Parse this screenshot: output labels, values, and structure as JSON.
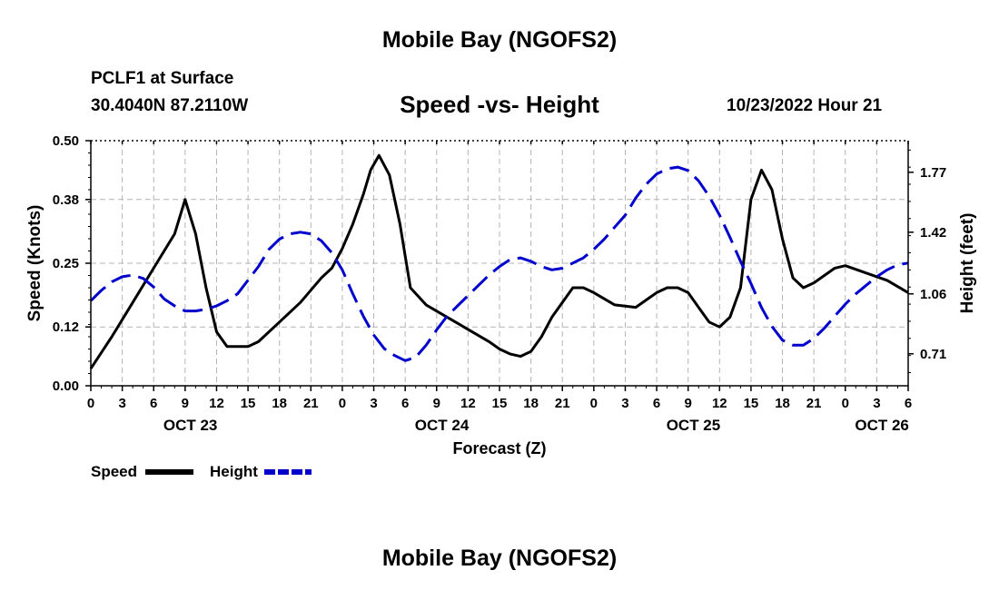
{
  "header": {
    "title": "Mobile Bay (NGOFS2)",
    "station": "PCLF1 at Surface",
    "coords": "30.4040N  87.2110W",
    "subtitle": "Speed -vs- Height",
    "datetime": "10/23/2022 Hour 21",
    "footer_title": "Mobile Bay (NGOFS2)"
  },
  "chart_data": {
    "type": "line",
    "xlabel": "Forecast (Z)",
    "ylabel_left": "Speed (Knots)",
    "ylabel_right": "Height (feet)",
    "x_range_hours": [
      0,
      78
    ],
    "x_ticks": [
      {
        "h": 0,
        "label": "0"
      },
      {
        "h": 3,
        "label": "3"
      },
      {
        "h": 6,
        "label": "6"
      },
      {
        "h": 9,
        "label": "9"
      },
      {
        "h": 12,
        "label": "12"
      },
      {
        "h": 15,
        "label": "15"
      },
      {
        "h": 18,
        "label": "18"
      },
      {
        "h": 21,
        "label": "21"
      },
      {
        "h": 24,
        "label": "0"
      },
      {
        "h": 27,
        "label": "3"
      },
      {
        "h": 30,
        "label": "6"
      },
      {
        "h": 33,
        "label": "9"
      },
      {
        "h": 36,
        "label": "12"
      },
      {
        "h": 39,
        "label": "15"
      },
      {
        "h": 42,
        "label": "18"
      },
      {
        "h": 45,
        "label": "21"
      },
      {
        "h": 48,
        "label": "0"
      },
      {
        "h": 51,
        "label": "3"
      },
      {
        "h": 54,
        "label": "6"
      },
      {
        "h": 57,
        "label": "9"
      },
      {
        "h": 60,
        "label": "12"
      },
      {
        "h": 63,
        "label": "15"
      },
      {
        "h": 66,
        "label": "18"
      },
      {
        "h": 69,
        "label": "21"
      },
      {
        "h": 72,
        "label": "0"
      },
      {
        "h": 75,
        "label": "3"
      },
      {
        "h": 78,
        "label": "6"
      }
    ],
    "date_labels": [
      {
        "h": 9.5,
        "label": "OCT 23"
      },
      {
        "h": 33.5,
        "label": "OCT 24"
      },
      {
        "h": 57.5,
        "label": "OCT 25"
      },
      {
        "h": 75.5,
        "label": "OCT 26"
      }
    ],
    "y_left": {
      "min": 0.0,
      "max": 0.5,
      "ticks": [
        "0.00",
        "0.12",
        "0.25",
        "0.38",
        "0.50"
      ]
    },
    "y_right": {
      "min": 0.5233,
      "max": 1.9545,
      "ticks": [
        "0.71",
        "1.06",
        "1.42",
        "1.77"
      ]
    },
    "series": [
      {
        "name": "Speed",
        "color": "#000000",
        "style": "solid",
        "axis": "left",
        "x": [
          0,
          2,
          4,
          6,
          8,
          9,
          10,
          11,
          12,
          13,
          14,
          15,
          16,
          18,
          20,
          22,
          23,
          24,
          25,
          26,
          26.7,
          27.5,
          28.5,
          29.5,
          30.5,
          32,
          34,
          36,
          38,
          39,
          40,
          41,
          42,
          43,
          44,
          46,
          47,
          48,
          50,
          52,
          53,
          54,
          55,
          56,
          57,
          58,
          59,
          60,
          61,
          62,
          63,
          64,
          65,
          66,
          67,
          68,
          69,
          70,
          71,
          72,
          74,
          76,
          78
        ],
        "values": [
          0.035,
          0.1,
          0.17,
          0.24,
          0.31,
          0.38,
          0.31,
          0.2,
          0.11,
          0.08,
          0.08,
          0.08,
          0.09,
          0.13,
          0.17,
          0.22,
          0.24,
          0.28,
          0.33,
          0.39,
          0.44,
          0.47,
          0.43,
          0.33,
          0.2,
          0.165,
          0.14,
          0.115,
          0.09,
          0.075,
          0.065,
          0.06,
          0.07,
          0.1,
          0.14,
          0.2,
          0.2,
          0.19,
          0.165,
          0.16,
          0.175,
          0.19,
          0.2,
          0.2,
          0.19,
          0.16,
          0.13,
          0.12,
          0.14,
          0.2,
          0.38,
          0.44,
          0.4,
          0.3,
          0.22,
          0.2,
          0.21,
          0.225,
          0.24,
          0.245,
          0.23,
          0.215,
          0.19
        ]
      },
      {
        "name": "Height",
        "color": "#0000cc",
        "style": "dashed",
        "axis": "right",
        "x": [
          0,
          1,
          2,
          3,
          4,
          5,
          6,
          7,
          8,
          9,
          10,
          11,
          12,
          13,
          14,
          15,
          16,
          17,
          18,
          19,
          20,
          21,
          22,
          23,
          24,
          25,
          26,
          27,
          28,
          29,
          30,
          31,
          32,
          33,
          34,
          35,
          36,
          37,
          38,
          39,
          40,
          41,
          42,
          43,
          44,
          45,
          46,
          47,
          48,
          49,
          50,
          51,
          52,
          53,
          54,
          55,
          56,
          57,
          58,
          59,
          60,
          61,
          62,
          63,
          64,
          65,
          66,
          67,
          68,
          69,
          70,
          71,
          72,
          73,
          74,
          75,
          76,
          77,
          78
        ],
        "values": [
          1.02,
          1.08,
          1.13,
          1.16,
          1.17,
          1.15,
          1.1,
          1.03,
          0.99,
          0.96,
          0.96,
          0.97,
          0.99,
          1.02,
          1.06,
          1.14,
          1.22,
          1.32,
          1.38,
          1.41,
          1.42,
          1.41,
          1.37,
          1.3,
          1.2,
          1.06,
          0.93,
          0.82,
          0.74,
          0.7,
          0.67,
          0.69,
          0.76,
          0.85,
          0.93,
          0.99,
          1.05,
          1.11,
          1.17,
          1.22,
          1.26,
          1.27,
          1.25,
          1.22,
          1.2,
          1.21,
          1.24,
          1.27,
          1.32,
          1.38,
          1.45,
          1.52,
          1.62,
          1.7,
          1.76,
          1.79,
          1.8,
          1.78,
          1.72,
          1.63,
          1.52,
          1.39,
          1.25,
          1.12,
          0.98,
          0.87,
          0.79,
          0.76,
          0.76,
          0.8,
          0.86,
          0.93,
          1.0,
          1.06,
          1.11,
          1.16,
          1.2,
          1.23,
          1.24
        ]
      }
    ],
    "legend": [
      {
        "label": "Speed",
        "color": "#000000",
        "style": "solid"
      },
      {
        "label": "Height",
        "color": "#0000cc",
        "style": "dashed"
      }
    ]
  }
}
